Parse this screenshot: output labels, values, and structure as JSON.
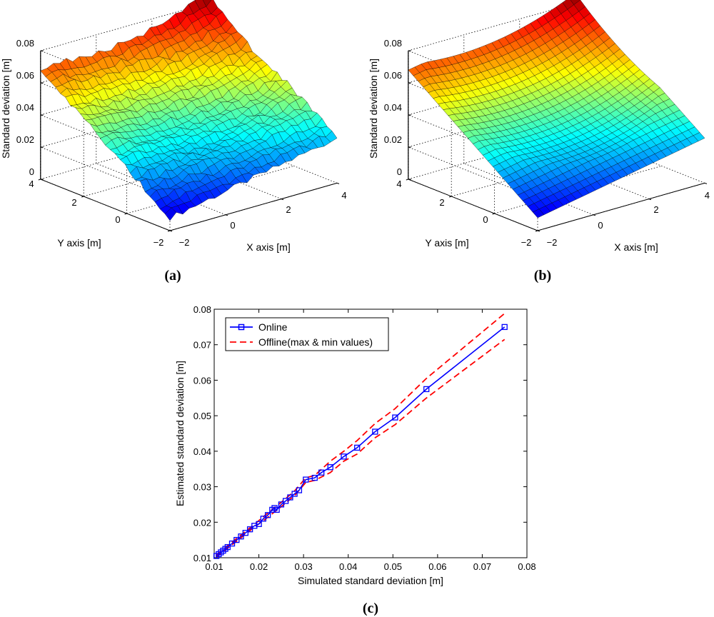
{
  "panels": {
    "a": {
      "label": "(a)",
      "zlabel": "Standard deviation [m]",
      "xlabel": "X axis [m]",
      "ylabel": "Y axis [m]",
      "zticks": [
        "0",
        "0.02",
        "0.04",
        "0.06",
        "0.08"
      ],
      "xticks": [
        "−2",
        "0",
        "2",
        "4"
      ],
      "yticks": [
        "−2",
        "0",
        "2",
        "4"
      ]
    },
    "b": {
      "label": "(b)",
      "zlabel": "Standard deviation [m]",
      "xlabel": "X axis [m]",
      "ylabel": "Y axis [m]",
      "zticks": [
        "0",
        "0.02",
        "0.04",
        "0.06",
        "0.08"
      ],
      "xticks": [
        "−2",
        "0",
        "2",
        "4"
      ],
      "yticks": [
        "−2",
        "0",
        "2",
        "4"
      ]
    },
    "c": {
      "label": "(c)"
    }
  },
  "chart_data": [
    {
      "id": "a",
      "type": "surface",
      "description_title": "",
      "xlabel": "X axis [m]",
      "ylabel": "Y axis [m]",
      "zlabel": "Standard deviation [m]",
      "xlim": [
        -2,
        4
      ],
      "ylim": [
        -2,
        4
      ],
      "zlim": [
        0,
        0.08
      ],
      "center": [
        1,
        1
      ],
      "corner_values": {
        "x4_y4": 0.087,
        "xm2_y4": 0.068,
        "xm2_ym2": 0.008,
        "x4_ym2": 0.028
      },
      "noisy": true
    },
    {
      "id": "b",
      "type": "surface",
      "xlabel": "X axis [m]",
      "ylabel": "Y axis [m]",
      "zlabel": "Standard deviation [m]",
      "xlim": [
        -2,
        4
      ],
      "ylim": [
        -2,
        4
      ],
      "zlim": [
        0,
        0.08
      ],
      "center": [
        1,
        1
      ],
      "corner_values": {
        "x4_y4": 0.087,
        "xm2_y4": 0.068,
        "xm2_ym2": 0.008,
        "x4_ym2": 0.028
      },
      "noisy": false
    },
    {
      "id": "c",
      "type": "line",
      "xlabel": "Simulated standard deviation [m]",
      "ylabel": "Estimated standard deviation [m]",
      "xlim": [
        0.01,
        0.08
      ],
      "ylim": [
        0.01,
        0.08
      ],
      "xticks": [
        "0.01",
        "0.02",
        "0.03",
        "0.04",
        "0.05",
        "0.06",
        "0.07",
        "0.08"
      ],
      "yticks": [
        "0.01",
        "0.02",
        "0.03",
        "0.04",
        "0.05",
        "0.06",
        "0.07",
        "0.08"
      ],
      "legend": [
        "Online",
        "Offline(max & min values)"
      ],
      "legend_position": "top-left",
      "series": [
        {
          "name": "Online",
          "color": "#0000ff",
          "marker": "square",
          "x": [
            0.0105,
            0.011,
            0.0115,
            0.012,
            0.0125,
            0.013,
            0.014,
            0.015,
            0.016,
            0.017,
            0.018,
            0.019,
            0.02,
            0.021,
            0.022,
            0.023,
            0.0235,
            0.024,
            0.025,
            0.026,
            0.027,
            0.028,
            0.029,
            0.0305,
            0.0325,
            0.034,
            0.036,
            0.039,
            0.042,
            0.046,
            0.0505,
            0.0575,
            0.075
          ],
          "y": [
            0.0105,
            0.011,
            0.0115,
            0.012,
            0.0125,
            0.013,
            0.014,
            0.015,
            0.016,
            0.017,
            0.018,
            0.019,
            0.0195,
            0.021,
            0.022,
            0.0235,
            0.024,
            0.0235,
            0.025,
            0.026,
            0.027,
            0.028,
            0.029,
            0.032,
            0.0325,
            0.034,
            0.0355,
            0.0385,
            0.041,
            0.0455,
            0.0495,
            0.0575,
            0.075
          ]
        },
        {
          "name": "Offline(max & min values)",
          "color": "#ff0000",
          "style": "dashed",
          "x": [
            0.0105,
            0.013,
            0.016,
            0.019,
            0.022,
            0.025,
            0.028,
            0.0305,
            0.0325,
            0.036,
            0.039,
            0.042,
            0.046,
            0.0505,
            0.0575,
            0.075
          ],
          "upper": [
            0.0108,
            0.0134,
            0.0164,
            0.0194,
            0.0226,
            0.0256,
            0.0288,
            0.0325,
            0.0332,
            0.0372,
            0.04,
            0.043,
            0.0478,
            0.052,
            0.0605,
            0.0788
          ],
          "lower": [
            0.0102,
            0.0127,
            0.0156,
            0.0186,
            0.0214,
            0.0244,
            0.0275,
            0.0312,
            0.0318,
            0.034,
            0.0372,
            0.0392,
            0.0438,
            0.0475,
            0.055,
            0.0715
          ]
        }
      ]
    }
  ]
}
